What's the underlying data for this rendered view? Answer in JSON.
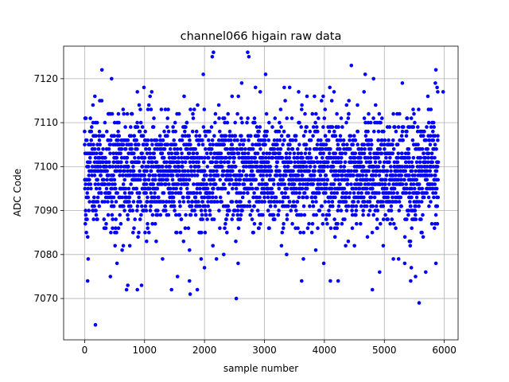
{
  "chart_data": {
    "type": "scatter",
    "title": "channel066 higain raw data",
    "xlabel": "sample number",
    "ylabel": "ADC Code",
    "xlim": [
      -350,
      6230
    ],
    "ylim": [
      7060.6,
      7127.4
    ],
    "xticks": [
      0,
      1000,
      2000,
      3000,
      4000,
      5000,
      6000
    ],
    "xtick_labels": [
      "0",
      "1000",
      "2000",
      "3000",
      "4000",
      "5000",
      "6000"
    ],
    "yticks": [
      7070,
      7080,
      7090,
      7100,
      7110,
      7120
    ],
    "ytick_labels": [
      "7070",
      "7080",
      "7090",
      "7100",
      "7110",
      "7120"
    ],
    "grid": true,
    "marker_color": "#0000ff",
    "series": [
      {
        "n_samples": 5900,
        "core_band": [
          7084,
          7114
        ],
        "dense_band": [
          7090,
          7108
        ],
        "points": [
          [
            50,
            7074
          ],
          [
            180,
            7064
          ],
          [
            290,
            7122
          ],
          [
            450,
            7120
          ],
          [
            1980,
            7121
          ],
          [
            2130,
            7125
          ],
          [
            2150,
            7126
          ],
          [
            2530,
            7070
          ],
          [
            2620,
            7119
          ],
          [
            2720,
            7126
          ],
          [
            2740,
            7125
          ],
          [
            3020,
            7121
          ],
          [
            4450,
            7123
          ],
          [
            4680,
            7121
          ],
          [
            4820,
            7120
          ],
          [
            5580,
            7069
          ],
          [
            5860,
            7122
          ],
          [
            5850,
            7119
          ],
          [
            5300,
            7119
          ],
          [
            4800,
            7072
          ],
          [
            1450,
            7072
          ],
          [
            1760,
            7071
          ],
          [
            1880,
            7072
          ],
          [
            880,
            7072
          ],
          [
            720,
            7073
          ],
          [
            950,
            7073
          ],
          [
            700,
            7072
          ],
          [
            3620,
            7074
          ],
          [
            4100,
            7074
          ],
          [
            4230,
            7074
          ],
          [
            5440,
            7074
          ],
          [
            1550,
            7075
          ],
          [
            5520,
            7075
          ],
          [
            430,
            7075
          ],
          [
            1750,
            7074
          ],
          [
            2850,
            7118
          ],
          [
            3330,
            7118
          ],
          [
            3420,
            7118
          ],
          [
            3570,
            7117
          ],
          [
            4160,
            7117
          ],
          [
            4660,
            7117
          ],
          [
            5890,
            7117
          ],
          [
            5980,
            7117
          ],
          [
            990,
            7118
          ],
          [
            880,
            7117
          ],
          [
            1120,
            7117
          ],
          [
            1660,
            7116
          ],
          [
            2460,
            7116
          ],
          [
            3710,
            7116
          ],
          [
            3980,
            7116
          ],
          [
            2320,
            7080
          ],
          [
            2560,
            7078
          ],
          [
            3370,
            7080
          ],
          [
            5150,
            7079
          ],
          [
            5340,
            7078
          ],
          [
            5690,
            7076
          ],
          [
            5860,
            7078
          ],
          [
            2200,
            7079
          ],
          [
            540,
            7078
          ],
          [
            2000,
            7077
          ],
          [
            1300,
            7079
          ],
          [
            3650,
            7079
          ],
          [
            3990,
            7078
          ],
          [
            4920,
            7076
          ],
          [
            5450,
            7077
          ]
        ]
      }
    ]
  }
}
